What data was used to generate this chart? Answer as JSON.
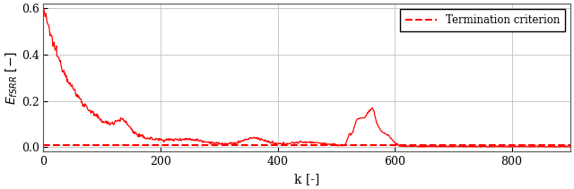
{
  "title": "",
  "xlabel": "k [-]",
  "ylabel": "$E_{fSRR}\\,[-]$",
  "xlim": [
    0,
    900
  ],
  "ylim": [
    -0.02,
    0.62
  ],
  "yticks": [
    0,
    0.2,
    0.4,
    0.6
  ],
  "xticks": [
    0,
    200,
    400,
    600,
    800
  ],
  "termination_value": 0.01,
  "termination_label": "Termination criterion",
  "line_color": "#FF0000",
  "dashed_color": "#FF0000",
  "background_color": "#ffffff",
  "grid_color": "#c0c0c0"
}
